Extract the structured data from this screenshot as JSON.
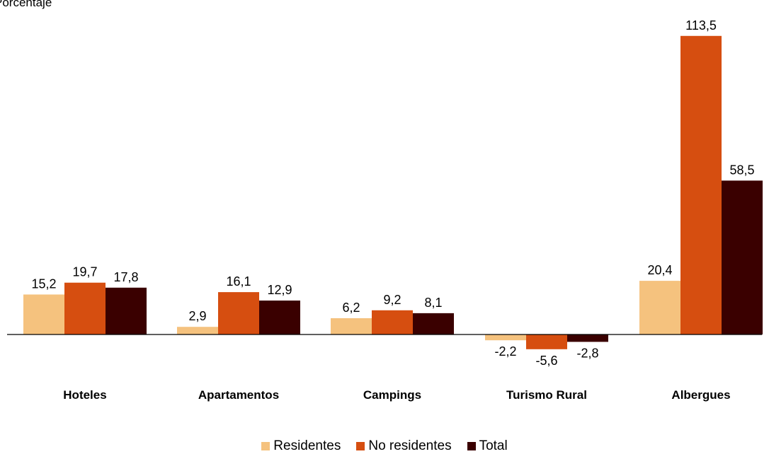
{
  "chart_data": {
    "type": "bar",
    "ylabel": "Porcentaje",
    "categories": [
      "Hoteles",
      "Apartamentos",
      "Campings",
      "Turismo Rural",
      "Albergues"
    ],
    "series": [
      {
        "name": "Residentes",
        "color": "#f5c27e",
        "values": [
          15.2,
          2.9,
          6.2,
          -2.2,
          20.4
        ]
      },
      {
        "name": "No residentes",
        "color": "#d64e10",
        "values": [
          19.7,
          16.1,
          9.2,
          -5.6,
          113.5
        ]
      },
      {
        "name": "Total",
        "color": "#3a0000",
        "values": [
          17.8,
          12.9,
          8.1,
          -2.8,
          58.5
        ]
      }
    ],
    "data_labels": [
      [
        "15,2",
        "2,9",
        "6,2",
        "-2,2",
        "20,4"
      ],
      [
        "19,7",
        "16,1",
        "9,2",
        "-5,6",
        "113,5"
      ],
      [
        "17,8",
        "12,9",
        "8,1",
        "-2,8",
        "58,5"
      ]
    ],
    "legend_position": "bottom",
    "grid": false
  }
}
